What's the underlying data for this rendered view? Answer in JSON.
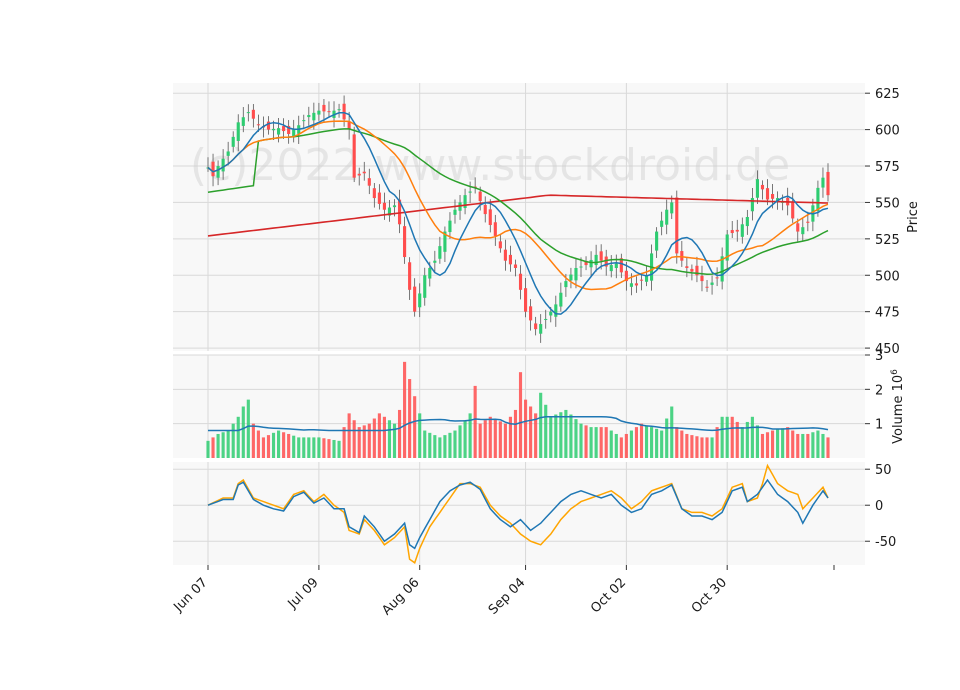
{
  "watermark": "(c)2022 www.stockdroid.de",
  "chart_data": {
    "type": "candlestick",
    "panels": [
      {
        "name": "price",
        "ylabel": "Price",
        "ylim": [
          448,
          632
        ],
        "ticks": [
          450,
          475,
          500,
          525,
          550,
          575,
          600,
          625
        ]
      },
      {
        "name": "volume",
        "ylabel": "Volume  10^6",
        "ylim": [
          0,
          3.0
        ],
        "ticks": [
          1,
          2,
          3
        ]
      },
      {
        "name": "oscillator",
        "ylabel": "",
        "ylim": [
          -83,
          60
        ],
        "ticks": [
          -50,
          0,
          50
        ]
      }
    ],
    "x_tick_labels": [
      "Jun 07",
      "Jul 09",
      "Aug 06",
      "Sep 04",
      "Oct 02",
      "Oct 30"
    ],
    "x_tick_index": [
      0,
      22,
      42,
      63,
      83,
      103
    ],
    "grid": true,
    "colors": {
      "up": "#2ecc71",
      "down": "#ff4d4d",
      "ma_short": "#1f77b4",
      "ma_mid": "#ff7f0e",
      "ma_long": "#2ca02c",
      "ma_200": "#d62728",
      "volume_ma": "#1f77b4",
      "osc_a": "#ffa500",
      "osc_b": "#1f77b4",
      "panel_bg": "#f8f8f8",
      "grid": "#d9d9d9"
    },
    "price_anchors": [
      [
        0,
        574
      ],
      [
        1,
        568
      ],
      [
        2,
        575
      ],
      [
        4,
        585
      ],
      [
        6,
        605
      ],
      [
        8,
        612
      ],
      [
        10,
        603
      ],
      [
        12,
        600
      ],
      [
        14,
        601
      ],
      [
        16,
        597
      ],
      [
        18,
        603
      ],
      [
        20,
        610
      ],
      [
        22,
        613
      ],
      [
        24,
        612
      ],
      [
        26,
        614
      ],
      [
        28,
        600
      ],
      [
        29,
        567
      ],
      [
        31,
        570
      ],
      [
        33,
        553
      ],
      [
        35,
        545
      ],
      [
        37,
        548
      ],
      [
        38,
        535
      ],
      [
        40,
        490
      ],
      [
        41,
        475
      ],
      [
        43,
        500
      ],
      [
        45,
        510
      ],
      [
        47,
        530
      ],
      [
        49,
        545
      ],
      [
        51,
        555
      ],
      [
        53,
        560
      ],
      [
        55,
        542
      ],
      [
        57,
        527
      ],
      [
        59,
        510
      ],
      [
        61,
        505
      ],
      [
        63,
        475
      ],
      [
        65,
        463
      ],
      [
        67,
        470
      ],
      [
        69,
        480
      ],
      [
        71,
        496
      ],
      [
        73,
        505
      ],
      [
        75,
        507
      ],
      [
        77,
        514
      ],
      [
        79,
        506
      ],
      [
        81,
        508
      ],
      [
        83,
        496
      ],
      [
        85,
        493
      ],
      [
        87,
        500
      ],
      [
        89,
        530
      ],
      [
        91,
        545
      ],
      [
        92,
        550
      ],
      [
        93,
        515
      ],
      [
        95,
        505
      ],
      [
        97,
        500
      ],
      [
        99,
        492
      ],
      [
        101,
        498
      ],
      [
        103,
        528
      ],
      [
        105,
        530
      ],
      [
        107,
        540
      ],
      [
        109,
        566
      ],
      [
        111,
        552
      ],
      [
        113,
        553
      ],
      [
        115,
        548
      ],
      [
        117,
        530
      ],
      [
        119,
        536
      ],
      [
        121,
        560
      ],
      [
        122,
        567
      ],
      [
        123,
        555
      ]
    ],
    "volume_anchors": [
      [
        0,
        0.5
      ],
      [
        2,
        0.7
      ],
      [
        4,
        0.8
      ],
      [
        6,
        1.2
      ],
      [
        7,
        1.5
      ],
      [
        8,
        1.7
      ],
      [
        9,
        1.0
      ],
      [
        11,
        0.6
      ],
      [
        14,
        0.8
      ],
      [
        18,
        0.6
      ],
      [
        22,
        0.6
      ],
      [
        26,
        0.5
      ],
      [
        28,
        1.3
      ],
      [
        30,
        0.9
      ],
      [
        32,
        1.0
      ],
      [
        34,
        1.3
      ],
      [
        37,
        1.0
      ],
      [
        38,
        1.4
      ],
      [
        39,
        2.8
      ],
      [
        40,
        2.3
      ],
      [
        41,
        1.8
      ],
      [
        43,
        0.8
      ],
      [
        46,
        0.6
      ],
      [
        49,
        0.8
      ],
      [
        51,
        1.1
      ],
      [
        52,
        1.3
      ],
      [
        53,
        2.1
      ],
      [
        54,
        1.0
      ],
      [
        56,
        1.2
      ],
      [
        59,
        1.0
      ],
      [
        61,
        1.4
      ],
      [
        62,
        2.5
      ],
      [
        63,
        1.7
      ],
      [
        65,
        1.3
      ],
      [
        66,
        1.9
      ],
      [
        68,
        1.2
      ],
      [
        71,
        1.4
      ],
      [
        74,
        1.0
      ],
      [
        76,
        0.9
      ],
      [
        79,
        0.9
      ],
      [
        82,
        0.6
      ],
      [
        84,
        0.8
      ],
      [
        86,
        1.0
      ],
      [
        88,
        0.9
      ],
      [
        90,
        0.8
      ],
      [
        92,
        1.5
      ],
      [
        93,
        0.9
      ],
      [
        95,
        0.7
      ],
      [
        98,
        0.6
      ],
      [
        100,
        0.6
      ],
      [
        102,
        1.2
      ],
      [
        104,
        1.2
      ],
      [
        106,
        0.9
      ],
      [
        108,
        1.2
      ],
      [
        110,
        0.7
      ],
      [
        112,
        0.8
      ],
      [
        115,
        0.9
      ],
      [
        117,
        0.7
      ],
      [
        119,
        0.7
      ],
      [
        121,
        0.8
      ],
      [
        123,
        0.6
      ]
    ],
    "osc_a_anchors": [
      [
        0,
        0
      ],
      [
        3,
        10
      ],
      [
        5,
        10
      ],
      [
        6,
        30
      ],
      [
        7,
        35
      ],
      [
        9,
        10
      ],
      [
        11,
        5
      ],
      [
        13,
        0
      ],
      [
        15,
        -5
      ],
      [
        17,
        15
      ],
      [
        19,
        20
      ],
      [
        21,
        5
      ],
      [
        23,
        15
      ],
      [
        25,
        0
      ],
      [
        27,
        -10
      ],
      [
        28,
        -35
      ],
      [
        30,
        -40
      ],
      [
        31,
        -20
      ],
      [
        33,
        -35
      ],
      [
        35,
        -55
      ],
      [
        37,
        -45
      ],
      [
        39,
        -30
      ],
      [
        40,
        -75
      ],
      [
        41,
        -80
      ],
      [
        42,
        -60
      ],
      [
        44,
        -30
      ],
      [
        46,
        -10
      ],
      [
        48,
        10
      ],
      [
        50,
        30
      ],
      [
        52,
        30
      ],
      [
        54,
        25
      ],
      [
        56,
        0
      ],
      [
        58,
        -15
      ],
      [
        60,
        -25
      ],
      [
        62,
        -40
      ],
      [
        64,
        -50
      ],
      [
        66,
        -55
      ],
      [
        68,
        -40
      ],
      [
        70,
        -20
      ],
      [
        72,
        -5
      ],
      [
        74,
        5
      ],
      [
        76,
        10
      ],
      [
        78,
        15
      ],
      [
        80,
        20
      ],
      [
        82,
        10
      ],
      [
        84,
        -5
      ],
      [
        86,
        5
      ],
      [
        88,
        20
      ],
      [
        90,
        25
      ],
      [
        92,
        30
      ],
      [
        94,
        -5
      ],
      [
        96,
        -10
      ],
      [
        98,
        -10
      ],
      [
        100,
        -15
      ],
      [
        102,
        -5
      ],
      [
        104,
        25
      ],
      [
        106,
        30
      ],
      [
        107,
        5
      ],
      [
        109,
        10
      ],
      [
        110,
        30
      ],
      [
        111,
        55
      ],
      [
        113,
        30
      ],
      [
        115,
        20
      ],
      [
        117,
        15
      ],
      [
        118,
        -5
      ],
      [
        120,
        10
      ],
      [
        122,
        25
      ],
      [
        123,
        10
      ]
    ],
    "osc_b_anchors": [
      [
        0,
        0
      ],
      [
        3,
        8
      ],
      [
        5,
        8
      ],
      [
        6,
        28
      ],
      [
        7,
        32
      ],
      [
        9,
        8
      ],
      [
        11,
        0
      ],
      [
        13,
        -5
      ],
      [
        15,
        -8
      ],
      [
        17,
        12
      ],
      [
        19,
        18
      ],
      [
        21,
        3
      ],
      [
        23,
        10
      ],
      [
        25,
        -5
      ],
      [
        27,
        -5
      ],
      [
        28,
        -30
      ],
      [
        30,
        -38
      ],
      [
        31,
        -15
      ],
      [
        33,
        -30
      ],
      [
        35,
        -50
      ],
      [
        37,
        -40
      ],
      [
        39,
        -25
      ],
      [
        40,
        -55
      ],
      [
        41,
        -60
      ],
      [
        42,
        -45
      ],
      [
        44,
        -20
      ],
      [
        46,
        5
      ],
      [
        48,
        20
      ],
      [
        50,
        28
      ],
      [
        52,
        32
      ],
      [
        54,
        22
      ],
      [
        56,
        -5
      ],
      [
        58,
        -20
      ],
      [
        60,
        -30
      ],
      [
        62,
        -20
      ],
      [
        64,
        -35
      ],
      [
        66,
        -25
      ],
      [
        68,
        -10
      ],
      [
        70,
        5
      ],
      [
        72,
        15
      ],
      [
        74,
        20
      ],
      [
        76,
        15
      ],
      [
        78,
        10
      ],
      [
        80,
        15
      ],
      [
        82,
        0
      ],
      [
        84,
        -10
      ],
      [
        86,
        -5
      ],
      [
        88,
        15
      ],
      [
        90,
        20
      ],
      [
        92,
        28
      ],
      [
        94,
        -5
      ],
      [
        96,
        -15
      ],
      [
        98,
        -15
      ],
      [
        100,
        -20
      ],
      [
        102,
        -10
      ],
      [
        104,
        20
      ],
      [
        106,
        25
      ],
      [
        107,
        5
      ],
      [
        109,
        15
      ],
      [
        110,
        25
      ],
      [
        111,
        35
      ],
      [
        113,
        15
      ],
      [
        115,
        5
      ],
      [
        117,
        -10
      ],
      [
        118,
        -25
      ],
      [
        120,
        0
      ],
      [
        122,
        20
      ],
      [
        123,
        10
      ]
    ]
  }
}
